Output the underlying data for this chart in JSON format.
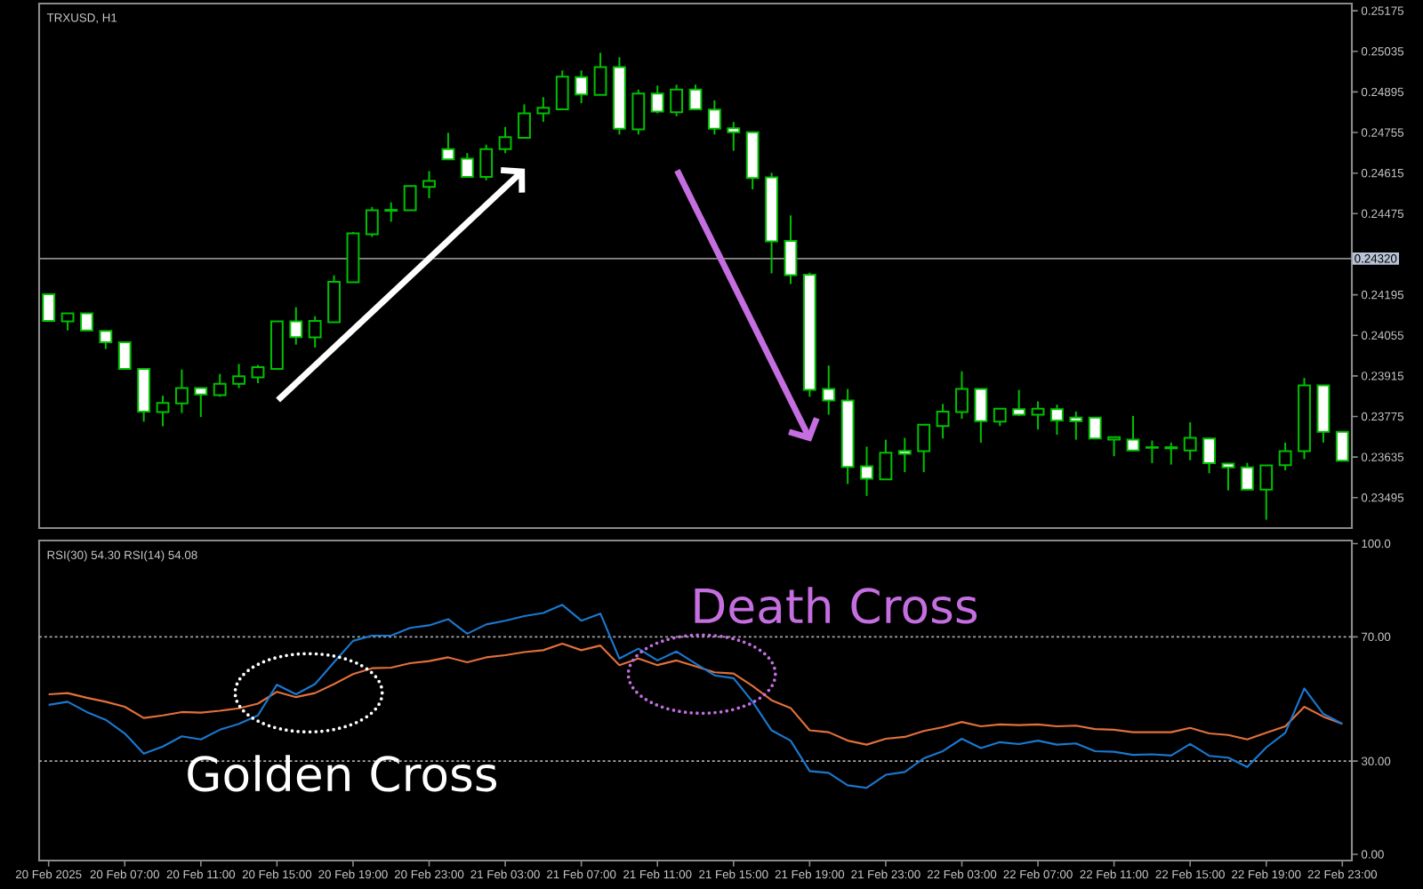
{
  "chart_data": [
    {
      "type": "candlestick",
      "title": "TRXUSD, H1",
      "x": [
        "2025-02-20T03:00",
        "2025-02-20T04:00",
        "2025-02-20T05:00",
        "2025-02-20T06:00",
        "2025-02-20T07:00",
        "2025-02-20T08:00",
        "2025-02-20T09:00",
        "2025-02-20T10:00",
        "2025-02-20T11:00",
        "2025-02-20T12:00",
        "2025-02-20T13:00",
        "2025-02-20T14:00",
        "2025-02-20T15:00",
        "2025-02-20T16:00",
        "2025-02-20T17:00",
        "2025-02-20T18:00",
        "2025-02-20T19:00",
        "2025-02-20T20:00",
        "2025-02-20T21:00",
        "2025-02-20T22:00",
        "2025-02-20T23:00",
        "2025-02-21T00:00",
        "2025-02-21T01:00",
        "2025-02-21T02:00",
        "2025-02-21T03:00",
        "2025-02-21T04:00",
        "2025-02-21T05:00",
        "2025-02-21T06:00",
        "2025-02-21T07:00",
        "2025-02-21T08:00",
        "2025-02-21T09:00",
        "2025-02-21T10:00",
        "2025-02-21T11:00",
        "2025-02-21T12:00",
        "2025-02-21T13:00",
        "2025-02-21T14:00",
        "2025-02-21T15:00",
        "2025-02-21T16:00",
        "2025-02-21T17:00",
        "2025-02-21T18:00",
        "2025-02-21T19:00",
        "2025-02-21T20:00",
        "2025-02-21T21:00",
        "2025-02-21T22:00",
        "2025-02-21T23:00",
        "2025-02-22T00:00",
        "2025-02-22T01:00",
        "2025-02-22T02:00",
        "2025-02-22T03:00",
        "2025-02-22T04:00",
        "2025-02-22T05:00",
        "2025-02-22T06:00",
        "2025-02-22T07:00",
        "2025-02-22T08:00",
        "2025-02-22T09:00",
        "2025-02-22T10:00",
        "2025-02-22T11:00",
        "2025-02-22T12:00",
        "2025-02-22T13:00",
        "2025-02-22T14:00",
        "2025-02-22T15:00",
        "2025-02-22T16:00",
        "2025-02-22T17:00",
        "2025-02-22T18:00",
        "2025-02-22T19:00",
        "2025-02-22T20:00",
        "2025-02-22T21:00",
        "2025-02-22T22:00",
        "2025-02-22T23:00"
      ],
      "ohlc": [
        [
          0.24197,
          0.24197,
          0.24105,
          0.24105
        ],
        [
          0.24103,
          0.24131,
          0.24072,
          0.24131
        ],
        [
          0.24131,
          0.24131,
          0.24072,
          0.24072
        ],
        [
          0.2407,
          0.2407,
          0.24008,
          0.24031
        ],
        [
          0.24031,
          0.24031,
          0.23939,
          0.23939
        ],
        [
          0.23939,
          0.23939,
          0.23757,
          0.23792
        ],
        [
          0.2379,
          0.23847,
          0.23741,
          0.23822
        ],
        [
          0.2382,
          0.23937,
          0.23787,
          0.23873
        ],
        [
          0.23873,
          0.23873,
          0.23773,
          0.23851
        ],
        [
          0.23849,
          0.23922,
          0.23843,
          0.23888
        ],
        [
          0.23888,
          0.23956,
          0.23873,
          0.23914
        ],
        [
          0.2391,
          0.23953,
          0.2389,
          0.23945
        ],
        [
          0.23939,
          0.24103,
          0.23937,
          0.24103
        ],
        [
          0.24103,
          0.24152,
          0.24023,
          0.24049
        ],
        [
          0.24048,
          0.24121,
          0.24013,
          0.24105
        ],
        [
          0.241,
          0.24262,
          0.24099,
          0.2424
        ],
        [
          0.24238,
          0.24412,
          0.24237,
          0.24407
        ],
        [
          0.24404,
          0.24498,
          0.24395,
          0.24487
        ],
        [
          0.24485,
          0.24514,
          0.24447,
          0.24488
        ],
        [
          0.24487,
          0.24571,
          0.24485,
          0.2457
        ],
        [
          0.24567,
          0.24622,
          0.24528,
          0.24588
        ],
        [
          0.24698,
          0.24754,
          0.2466,
          0.24662
        ],
        [
          0.24665,
          0.24684,
          0.24602,
          0.24602
        ],
        [
          0.24602,
          0.24713,
          0.2459,
          0.24698
        ],
        [
          0.24698,
          0.24774,
          0.24684,
          0.24739
        ],
        [
          0.24737,
          0.24852,
          0.24737,
          0.24821
        ],
        [
          0.24821,
          0.24877,
          0.24792,
          0.2484
        ],
        [
          0.24835,
          0.24969,
          0.24835,
          0.24948
        ],
        [
          0.24946,
          0.24969,
          0.24856,
          0.24886
        ],
        [
          0.24885,
          0.2503,
          0.24885,
          0.24981
        ],
        [
          0.24981,
          0.25015,
          0.24748,
          0.24768
        ],
        [
          0.24766,
          0.24903,
          0.24748,
          0.24889
        ],
        [
          0.24889,
          0.24917,
          0.24821,
          0.24827
        ],
        [
          0.24825,
          0.2492,
          0.24811,
          0.24903
        ],
        [
          0.24903,
          0.2492,
          0.24835,
          0.24835
        ],
        [
          0.24834,
          0.24866,
          0.24748,
          0.24768
        ],
        [
          0.2477,
          0.24791,
          0.24692,
          0.24756
        ],
        [
          0.24756,
          0.24756,
          0.24559,
          0.24598
        ],
        [
          0.246,
          0.24616,
          0.24269,
          0.24379
        ],
        [
          0.24381,
          0.24469,
          0.24232,
          0.24263
        ],
        [
          0.24264,
          0.24271,
          0.23843,
          0.23867
        ],
        [
          0.2387,
          0.23951,
          0.23781,
          0.2383
        ],
        [
          0.2383,
          0.2387,
          0.23542,
          0.23601
        ],
        [
          0.23603,
          0.23671,
          0.23501,
          0.2356
        ],
        [
          0.23558,
          0.23695,
          0.23558,
          0.2365
        ],
        [
          0.23656,
          0.23701,
          0.23583,
          0.23646
        ],
        [
          0.23655,
          0.23749,
          0.23583,
          0.23747
        ],
        [
          0.23742,
          0.23818,
          0.23699,
          0.23792
        ],
        [
          0.2379,
          0.23931,
          0.23767,
          0.2387
        ],
        [
          0.2387,
          0.23871,
          0.23685,
          0.23759
        ],
        [
          0.23757,
          0.23804,
          0.23742,
          0.23802
        ],
        [
          0.238,
          0.23867,
          0.23777,
          0.23781
        ],
        [
          0.23781,
          0.23827,
          0.2373,
          0.23802
        ],
        [
          0.238,
          0.23816,
          0.23712,
          0.23761
        ],
        [
          0.23771,
          0.23792,
          0.23695,
          0.23759
        ],
        [
          0.23771,
          0.23773,
          0.23699,
          0.23699
        ],
        [
          0.23695,
          0.23706,
          0.23638,
          0.23704
        ],
        [
          0.23695,
          0.23777,
          0.23656,
          0.23658
        ],
        [
          0.23667,
          0.23692,
          0.23614,
          0.23669
        ],
        [
          0.23669,
          0.23685,
          0.23609,
          0.23665
        ],
        [
          0.23658,
          0.23755,
          0.23624,
          0.23701
        ],
        [
          0.23699,
          0.23701,
          0.23579,
          0.23614
        ],
        [
          0.23612,
          0.23614,
          0.2352,
          0.23599
        ],
        [
          0.23599,
          0.23615,
          0.23521,
          0.23523
        ],
        [
          0.23523,
          0.23607,
          0.23419,
          0.23606
        ],
        [
          0.23607,
          0.23685,
          0.23589,
          0.23655
        ],
        [
          0.23655,
          0.23908,
          0.23628,
          0.23882
        ],
        [
          0.23882,
          0.23884,
          0.23685,
          0.23722
        ],
        [
          0.23722,
          0.23724,
          0.23622,
          0.23622
        ]
      ],
      "xlim": [
        "2025-02-20T02:30",
        "2025-02-22T23:30"
      ],
      "ylim": [
        0.2339,
        0.252
      ],
      "yticks": [
        0.25175,
        0.25035,
        0.24895,
        0.24755,
        0.24615,
        0.24475,
        {
          "value": 0.24335,
          "label": null
        },
        0.24195,
        0.24055,
        0.23915,
        0.23775,
        0.23635,
        0.23495
      ],
      "ref_lines": [
        {
          "axis": "y",
          "value": 0.2432,
          "label": "0.24320",
          "color": "#8c8c8c"
        }
      ],
      "tick_labels": "y"
    },
    {
      "type": "line",
      "title": "RSI(30) 54.30 RSI(14) 54.08",
      "x": [
        "2025-02-20T03:00",
        "2025-02-20T04:00",
        "2025-02-20T05:00",
        "2025-02-20T06:00",
        "2025-02-20T07:00",
        "2025-02-20T08:00",
        "2025-02-20T09:00",
        "2025-02-20T10:00",
        "2025-02-20T11:00",
        "2025-02-20T12:00",
        "2025-02-20T13:00",
        "2025-02-20T14:00",
        "2025-02-20T15:00",
        "2025-02-20T16:00",
        "2025-02-20T17:00",
        "2025-02-20T18:00",
        "2025-02-20T19:00",
        "2025-02-20T20:00",
        "2025-02-20T21:00",
        "2025-02-20T22:00",
        "2025-02-20T23:00",
        "2025-02-21T00:00",
        "2025-02-21T01:00",
        "2025-02-21T02:00",
        "2025-02-21T03:00",
        "2025-02-21T04:00",
        "2025-02-21T05:00",
        "2025-02-21T06:00",
        "2025-02-21T07:00",
        "2025-02-21T08:00",
        "2025-02-21T09:00",
        "2025-02-21T10:00",
        "2025-02-21T11:00",
        "2025-02-21T12:00",
        "2025-02-21T13:00",
        "2025-02-21T14:00",
        "2025-02-21T15:00",
        "2025-02-21T16:00",
        "2025-02-21T17:00",
        "2025-02-21T18:00",
        "2025-02-21T19:00",
        "2025-02-21T20:00",
        "2025-02-21T21:00",
        "2025-02-21T22:00",
        "2025-02-21T23:00",
        "2025-02-22T00:00",
        "2025-02-22T01:00",
        "2025-02-22T02:00",
        "2025-02-22T03:00",
        "2025-02-22T04:00",
        "2025-02-22T05:00",
        "2025-02-22T06:00",
        "2025-02-22T07:00",
        "2025-02-22T08:00",
        "2025-02-22T09:00",
        "2025-02-22T10:00",
        "2025-02-22T11:00",
        "2025-02-22T12:00",
        "2025-02-22T13:00",
        "2025-02-22T14:00",
        "2025-02-22T15:00",
        "2025-02-22T16:00",
        "2025-02-22T17:00",
        "2025-02-22T18:00",
        "2025-02-22T19:00",
        "2025-02-22T20:00",
        "2025-02-22T21:00",
        "2025-02-22T22:00",
        "2025-02-22T23:00"
      ],
      "series": [
        {
          "color": "#e2703c",
          "values": [
            51.5,
            51.9,
            50.4,
            49.1,
            47.5,
            43.9,
            44.7,
            45.8,
            45.6,
            46.2,
            47.0,
            48.5,
            52.3,
            50.6,
            51.9,
            54.8,
            58.0,
            59.9,
            60.1,
            61.5,
            62.2,
            63.4,
            61.8,
            63.4,
            64.1,
            65.1,
            65.7,
            67.8,
            65.7,
            67.2,
            60.9,
            63.0,
            60.9,
            62.4,
            60.5,
            58.6,
            58.2,
            54.2,
            49.6,
            47.1,
            39.9,
            39.3,
            36.6,
            35.3,
            37.2,
            37.8,
            39.7,
            40.9,
            42.6,
            41.2,
            41.8,
            41.6,
            41.8,
            41.2,
            41.4,
            40.3,
            40.1,
            39.3,
            39.3,
            39.3,
            40.7,
            38.9,
            38.4,
            37.0,
            39.1,
            41.2,
            47.5,
            44.3,
            42.0
          ]
        },
        {
          "color": "#1a78d0",
          "values": [
            48.1,
            49.1,
            45.8,
            43.3,
            38.9,
            32.4,
            34.7,
            38.0,
            37.0,
            40.1,
            42.0,
            44.7,
            54.6,
            51.5,
            54.8,
            61.8,
            68.7,
            70.4,
            70.4,
            72.9,
            73.7,
            75.7,
            71.0,
            74.0,
            75.2,
            76.7,
            77.7,
            80.3,
            75.2,
            77.5,
            63.0,
            66.2,
            62.4,
            65.3,
            61.4,
            57.6,
            56.7,
            49.1,
            39.9,
            36.6,
            26.8,
            26.2,
            22.2,
            21.4,
            25.6,
            26.5,
            30.9,
            33.2,
            37.2,
            34.2,
            36.1,
            35.5,
            36.6,
            35.3,
            35.7,
            33.2,
            33.0,
            32.0,
            32.2,
            31.8,
            35.5,
            31.7,
            31.1,
            28.1,
            34.4,
            39.1,
            53.4,
            45.2,
            42.0
          ]
        }
      ],
      "xlim": [
        "2025-02-20T02:30",
        "2025-02-22T23:30"
      ],
      "xticks": [
        {
          "value": "2025-02-20T03:00",
          "label": "20 Feb 2025"
        },
        {
          "value": "2025-02-20T07:00",
          "label": "20 Feb 07:00"
        },
        {
          "value": "2025-02-20T11:00",
          "label": "20 Feb 11:00"
        },
        {
          "value": "2025-02-20T15:00",
          "label": "20 Feb 15:00"
        },
        {
          "value": "2025-02-20T19:00",
          "label": "20 Feb 19:00"
        },
        {
          "value": "2025-02-20T23:00",
          "label": "20 Feb 23:00"
        },
        {
          "value": "2025-02-21T03:00",
          "label": "21 Feb 03:00"
        },
        {
          "value": "2025-02-21T07:00",
          "label": "21 Feb 07:00"
        },
        {
          "value": "2025-02-21T11:00",
          "label": "21 Feb 11:00"
        },
        {
          "value": "2025-02-21T15:00",
          "label": "21 Feb 15:00"
        },
        {
          "value": "2025-02-21T19:00",
          "label": "21 Feb 19:00"
        },
        {
          "value": "2025-02-21T23:00",
          "label": "21 Feb 23:00"
        },
        {
          "value": "2025-02-22T03:00",
          "label": "22 Feb 03:00"
        },
        {
          "value": "2025-02-22T07:00",
          "label": "22 Feb 07:00"
        },
        {
          "value": "2025-02-22T11:00",
          "label": "22 Feb 11:00"
        },
        {
          "value": "2025-02-22T15:00",
          "label": "22 Feb 15:00"
        },
        {
          "value": "2025-02-22T19:00",
          "label": "22 Feb 19:00"
        },
        {
          "value": "2025-02-22T23:00",
          "label": "22 Feb 23:00"
        }
      ],
      "ylim": [
        -2,
        101
      ],
      "yticks": [
        {
          "value": 100,
          "label": "100.0"
        },
        {
          "value": 70,
          "label": "70.00"
        },
        {
          "value": 30,
          "label": "30.00"
        },
        {
          "value": 0,
          "label": "0.00"
        }
      ],
      "ref_lines": [
        {
          "axis": "y",
          "value": 70,
          "color": "#a8a8a8",
          "line_style": "dotted"
        },
        {
          "axis": "y",
          "value": 30,
          "color": "#a8a8a8",
          "line_style": "dotted"
        }
      ],
      "annotations": [
        {
          "text": "Golden Cross",
          "x": "2025-02-20T16:40",
          "y": 52
        },
        {
          "text": "Death Cross",
          "x": "2025-02-21T13:20",
          "y": 58
        }
      ]
    }
  ]
}
